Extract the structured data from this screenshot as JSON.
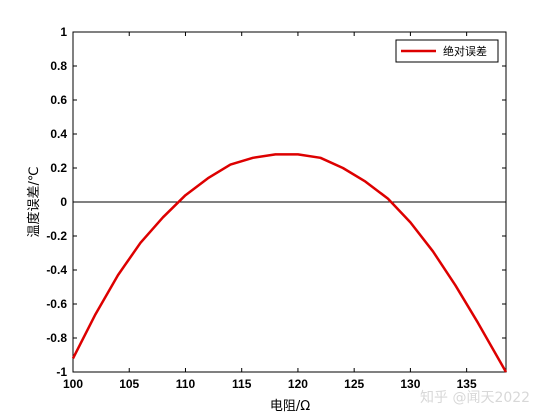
{
  "chart_data": {
    "type": "line",
    "title": "",
    "xlabel": "电阻/Ω",
    "ylabel": "温度误差/℃",
    "xlim": [
      100,
      138.5
    ],
    "ylim": [
      -1,
      1
    ],
    "x_ticks": [
      100,
      105,
      110,
      115,
      120,
      125,
      130,
      135
    ],
    "y_ticks": [
      -1,
      -0.8,
      -0.6,
      -0.4,
      -0.2,
      0,
      0.2,
      0.4,
      0.6,
      0.8,
      1
    ],
    "grid": false,
    "legend_position": "top-right",
    "zero_line": true,
    "series": [
      {
        "name": "绝对误差",
        "color": "#dd0000",
        "x": [
          100,
          102,
          104,
          106,
          108,
          110,
          112,
          114,
          116,
          118,
          119.2,
          120,
          122,
          124,
          126,
          128,
          130,
          132,
          134,
          136,
          138.5
        ],
        "y": [
          -0.92,
          -0.66,
          -0.43,
          -0.24,
          -0.09,
          0.04,
          0.14,
          0.22,
          0.26,
          0.28,
          0.28,
          0.28,
          0.26,
          0.2,
          0.12,
          0.02,
          -0.12,
          -0.29,
          -0.49,
          -0.71,
          -1.0
        ]
      }
    ]
  },
  "watermark": "知乎 @闻天2022"
}
